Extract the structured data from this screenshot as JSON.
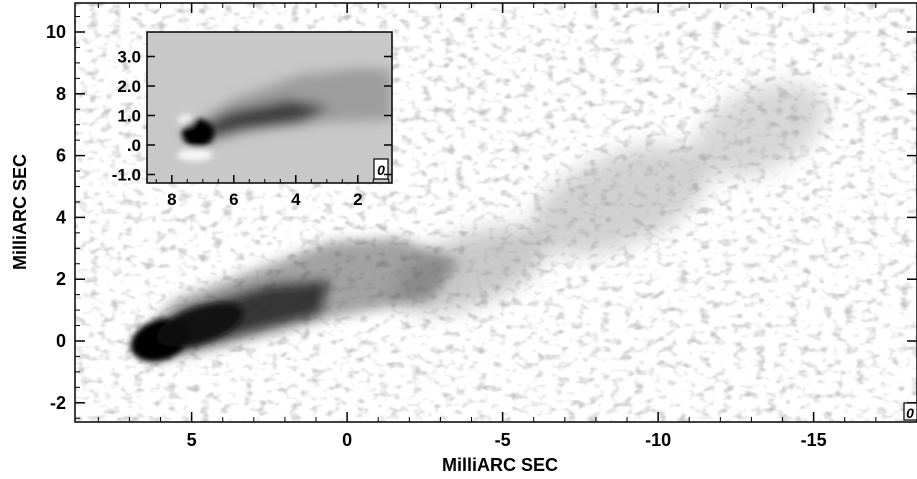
{
  "main_map": {
    "x_axis_label": "MilliARC SEC",
    "y_axis_label": "MilliARC SEC",
    "x_ticks": [
      {
        "value": 5,
        "label": "5"
      },
      {
        "value": 0,
        "label": "0"
      },
      {
        "value": -5,
        "label": "-5"
      },
      {
        "value": -10,
        "label": "-10"
      },
      {
        "value": -15,
        "label": "-15"
      }
    ],
    "y_ticks": [
      {
        "value": 10,
        "label": "10"
      },
      {
        "value": 8,
        "label": "8"
      },
      {
        "value": 6,
        "label": "6"
      },
      {
        "value": 4,
        "label": "4"
      },
      {
        "value": 2,
        "label": "2"
      },
      {
        "value": 0,
        "label": "0"
      },
      {
        "value": -2,
        "label": "-2"
      }
    ],
    "beam_label": "0"
  },
  "inset_map": {
    "x_ticks": [
      {
        "value": 8,
        "label": "8"
      },
      {
        "value": 6,
        "label": "6"
      },
      {
        "value": 4,
        "label": "4"
      },
      {
        "value": 2,
        "label": "2"
      }
    ],
    "y_ticks": [
      {
        "value": 3.0,
        "label": "3.0"
      },
      {
        "value": 2.0,
        "label": "2.0"
      },
      {
        "value": 1.0,
        "label": "1.0"
      },
      {
        "value": 0.0,
        "label": ".0"
      },
      {
        "value": -1.0,
        "label": "-1.0"
      }
    ],
    "beam_label": "0"
  }
}
